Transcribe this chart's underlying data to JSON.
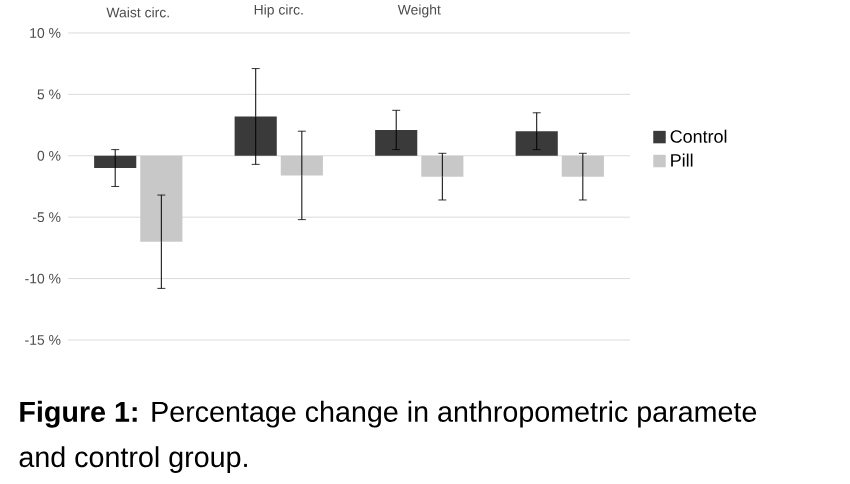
{
  "chart_data": {
    "type": "bar",
    "categories": [
      "Waist circ.",
      "Hip circ.",
      "Weight",
      null
    ],
    "series": [
      {
        "name": "Control",
        "color": "#3a3a3a",
        "values": [
          -1.0,
          3.2,
          2.1,
          2.0
        ],
        "errors": [
          1.5,
          3.9,
          1.6,
          1.5
        ]
      },
      {
        "name": "Pill",
        "color": "#c8c8c8",
        "values": [
          -7.0,
          -1.6,
          -1.7,
          -1.7
        ],
        "errors": [
          3.8,
          3.6,
          1.9,
          1.9
        ]
      }
    ],
    "ylim": [
      -15,
      10
    ],
    "yticks": [
      {
        "value": -15,
        "label": "-15 %"
      },
      {
        "value": -10,
        "label": "-10 %"
      },
      {
        "value": -5,
        "label": "-5 %"
      },
      {
        "value": 0,
        "label": "0 %"
      },
      {
        "value": 5,
        "label": "5 %"
      },
      {
        "value": 10,
        "label": "10 %"
      }
    ],
    "grid": "y",
    "legend": "right",
    "annotations": [
      "**Figure 1:** Percentage change in anthropometric paramete",
      "and control group."
    ]
  }
}
